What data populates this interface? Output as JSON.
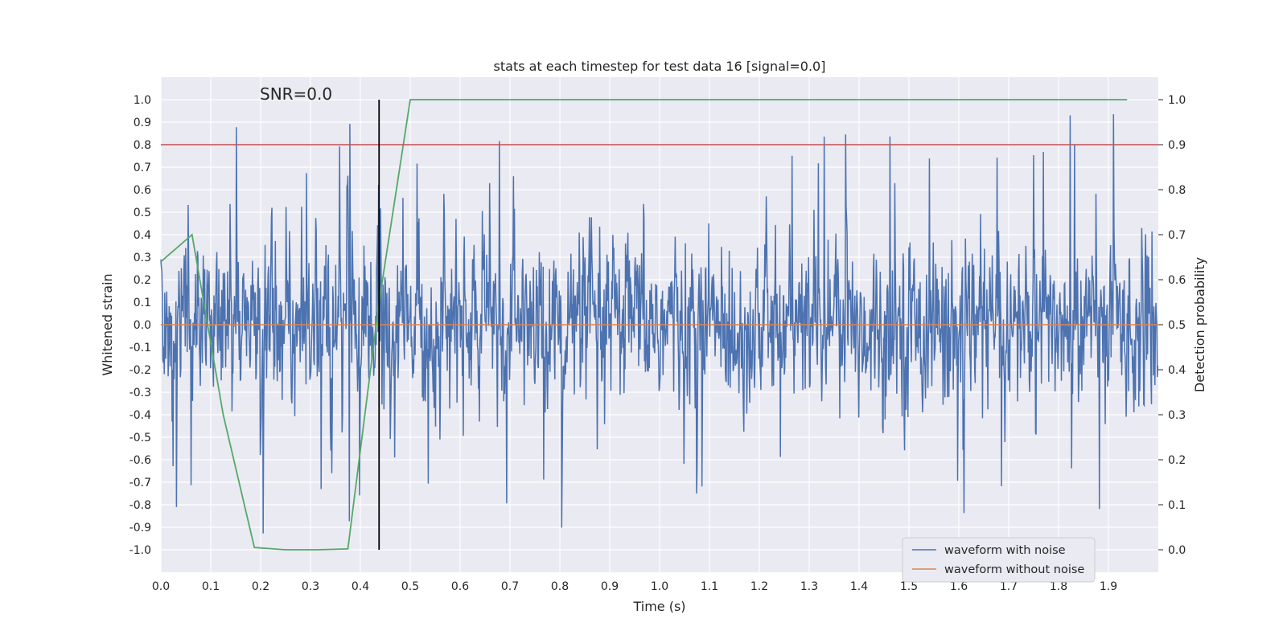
{
  "chart_data": {
    "type": "line",
    "title": "stats at each timestep for test data 16 [signal=0.0]",
    "xlabel": "Time (s)",
    "ylabel": "Whitened strain",
    "y2label": "Detection probability",
    "xlim": [
      0.0,
      2.0
    ],
    "ylim": [
      -1.1,
      1.1
    ],
    "y2lim": [
      -0.05,
      1.05
    ],
    "x_ticks": [
      "0.0",
      "0.1",
      "0.2",
      "0.3",
      "0.4",
      "0.5",
      "0.6",
      "0.7",
      "0.8",
      "0.9",
      "1.0",
      "1.1",
      "1.2",
      "1.3",
      "1.4",
      "1.5",
      "1.6",
      "1.7",
      "1.8",
      "1.9"
    ],
    "y_ticks": [
      "-1.0",
      "-0.9",
      "-0.8",
      "-0.7",
      "-0.6",
      "-0.5",
      "-0.4",
      "-0.3",
      "-0.2",
      "-0.1",
      "0.0",
      "0.1",
      "0.2",
      "0.3",
      "0.4",
      "0.5",
      "0.6",
      "0.7",
      "0.8",
      "0.9",
      "1.0"
    ],
    "y2_ticks": [
      "0.0",
      "0.1",
      "0.2",
      "0.3",
      "0.4",
      "0.5",
      "0.6",
      "0.7",
      "0.8",
      "0.9",
      "1.0"
    ],
    "grid": true,
    "legend_position": "bottom-right",
    "annotation": "SNR=0.0",
    "series": [
      {
        "name": "waveform with noise",
        "axis": "left",
        "color": "#4c72b0",
        "kind": "noise",
        "samples": 2048,
        "range": [
          -0.96,
          1.0
        ]
      },
      {
        "name": "waveform without noise",
        "axis": "left",
        "color": "#dd8452",
        "x": [
          0.0,
          2.0
        ],
        "y": [
          0.0,
          0.0
        ]
      },
      {
        "axis": "right",
        "color": "#55a868",
        "x": [
          0.0,
          0.0625,
          0.125,
          0.1875,
          0.25,
          0.3125,
          0.375,
          0.4375,
          0.5,
          0.5625,
          0.625,
          0.6875,
          0.75,
          0.8125,
          0.875,
          0.9375,
          1.0,
          1.0625,
          1.125,
          1.1875,
          1.25,
          1.3125,
          1.375,
          1.4375,
          1.5,
          1.5625,
          1.625,
          1.6875,
          1.75,
          1.8125,
          1.875,
          1.9375
        ],
        "y": [
          0.64,
          0.7,
          0.3,
          0.005,
          0.0,
          0.0,
          0.002,
          0.55,
          1.0,
          1.0,
          1.0,
          1.0,
          1.0,
          1.0,
          1.0,
          1.0,
          1.0,
          1.0,
          1.0,
          1.0,
          1.0,
          1.0,
          1.0,
          1.0,
          1.0,
          1.0,
          1.0,
          1.0,
          1.0,
          1.0,
          1.0,
          1.0
        ]
      }
    ],
    "threshold": {
      "axis": "right",
      "value": 0.9,
      "color": "#c44e52"
    },
    "marker_line": {
      "x": 0.4375,
      "y_from": 0.0,
      "y_to": 1.0,
      "axis": "right",
      "color": "#000000"
    }
  }
}
